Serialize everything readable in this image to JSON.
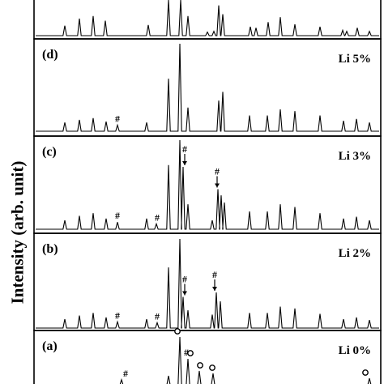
{
  "chart_data": {
    "type": "line",
    "ylabel": "Intensity (arb. unit)",
    "xlabel": "",
    "panels": [
      {
        "panel": "",
        "label": "",
        "peaks": [
          {
            "x": 80,
            "h": 0.28
          },
          {
            "x": 98,
            "h": 0.48
          },
          {
            "x": 115,
            "h": 0.55
          },
          {
            "x": 130,
            "h": 0.42
          },
          {
            "x": 183,
            "h": 0.3
          },
          {
            "x": 208,
            "h": 1.0
          },
          {
            "x": 223,
            "h": 1.0
          },
          {
            "x": 232,
            "h": 0.55
          },
          {
            "x": 256,
            "h": 0.1
          },
          {
            "x": 264,
            "h": 0.12
          },
          {
            "x": 270,
            "h": 0.85
          },
          {
            "x": 275,
            "h": 0.6
          },
          {
            "x": 309,
            "h": 0.25
          },
          {
            "x": 316,
            "h": 0.22
          },
          {
            "x": 331,
            "h": 0.38
          },
          {
            "x": 346,
            "h": 0.52
          },
          {
            "x": 364,
            "h": 0.32
          },
          {
            "x": 395,
            "h": 0.25
          },
          {
            "x": 423,
            "h": 0.15
          },
          {
            "x": 428,
            "h": 0.12
          },
          {
            "x": 441,
            "h": 0.22
          },
          {
            "x": 456,
            "h": 0.12
          }
        ],
        "markers": []
      },
      {
        "panel": "(d)",
        "label": "Li 5%",
        "peaks": [
          {
            "x": 80,
            "h": 0.1
          },
          {
            "x": 98,
            "h": 0.13
          },
          {
            "x": 115,
            "h": 0.15
          },
          {
            "x": 131,
            "h": 0.11
          },
          {
            "x": 145,
            "h": 0.07
          },
          {
            "x": 181,
            "h": 0.1
          },
          {
            "x": 208,
            "h": 0.6
          },
          {
            "x": 222,
            "h": 1.0
          },
          {
            "x": 232,
            "h": 0.27
          },
          {
            "x": 270,
            "h": 0.35
          },
          {
            "x": 275,
            "h": 0.45
          },
          {
            "x": 308,
            "h": 0.18
          },
          {
            "x": 330,
            "h": 0.18
          },
          {
            "x": 346,
            "h": 0.25
          },
          {
            "x": 364,
            "h": 0.23
          },
          {
            "x": 395,
            "h": 0.18
          },
          {
            "x": 424,
            "h": 0.12
          },
          {
            "x": 440,
            "h": 0.14
          },
          {
            "x": 456,
            "h": 0.1
          }
        ],
        "markers": [
          {
            "x": 145,
            "symbol": "#",
            "arrow": false
          }
        ]
      },
      {
        "panel": "(c)",
        "label": "Li 3%",
        "peaks": [
          {
            "x": 80,
            "h": 0.1
          },
          {
            "x": 98,
            "h": 0.15
          },
          {
            "x": 115,
            "h": 0.18
          },
          {
            "x": 131,
            "h": 0.12
          },
          {
            "x": 145,
            "h": 0.08
          },
          {
            "x": 181,
            "h": 0.12
          },
          {
            "x": 193,
            "h": 0.06
          },
          {
            "x": 208,
            "h": 0.72
          },
          {
            "x": 222,
            "h": 1.0
          },
          {
            "x": 226,
            "h": 0.7
          },
          {
            "x": 232,
            "h": 0.28
          },
          {
            "x": 262,
            "h": 0.1
          },
          {
            "x": 269,
            "h": 0.45
          },
          {
            "x": 273,
            "h": 0.38
          },
          {
            "x": 277,
            "h": 0.3
          },
          {
            "x": 308,
            "h": 0.2
          },
          {
            "x": 330,
            "h": 0.2
          },
          {
            "x": 346,
            "h": 0.28
          },
          {
            "x": 364,
            "h": 0.25
          },
          {
            "x": 395,
            "h": 0.18
          },
          {
            "x": 424,
            "h": 0.12
          },
          {
            "x": 440,
            "h": 0.14
          },
          {
            "x": 456,
            "h": 0.1
          }
        ],
        "markers": [
          {
            "x": 145,
            "symbol": "#",
            "arrow": false
          },
          {
            "x": 194,
            "symbol": "#",
            "arrow": false
          },
          {
            "x": 228,
            "symbol": "#",
            "arrow": true
          },
          {
            "x": 268,
            "symbol": "#",
            "arrow": true
          }
        ]
      },
      {
        "panel": "(b)",
        "label": "Li 2%",
        "peaks": [
          {
            "x": 80,
            "h": 0.1
          },
          {
            "x": 98,
            "h": 0.14
          },
          {
            "x": 115,
            "h": 0.17
          },
          {
            "x": 131,
            "h": 0.12
          },
          {
            "x": 145,
            "h": 0.07
          },
          {
            "x": 181,
            "h": 0.1
          },
          {
            "x": 194,
            "h": 0.06
          },
          {
            "x": 208,
            "h": 0.68
          },
          {
            "x": 222,
            "h": 1.0
          },
          {
            "x": 226,
            "h": 0.35
          },
          {
            "x": 232,
            "h": 0.2
          },
          {
            "x": 262,
            "h": 0.15
          },
          {
            "x": 267,
            "h": 0.4
          },
          {
            "x": 272,
            "h": 0.3
          },
          {
            "x": 308,
            "h": 0.17
          },
          {
            "x": 330,
            "h": 0.17
          },
          {
            "x": 346,
            "h": 0.24
          },
          {
            "x": 364,
            "h": 0.22
          },
          {
            "x": 395,
            "h": 0.16
          },
          {
            "x": 424,
            "h": 0.1
          },
          {
            "x": 440,
            "h": 0.12
          },
          {
            "x": 456,
            "h": 0.09
          }
        ],
        "markers": [
          {
            "x": 145,
            "symbol": "#",
            "arrow": false
          },
          {
            "x": 194,
            "symbol": "#",
            "arrow": false
          },
          {
            "x": 228,
            "symbol": "#",
            "arrow": true
          },
          {
            "x": 265,
            "symbol": "#",
            "arrow": true
          }
        ]
      },
      {
        "panel": "(a)",
        "label": "Li 0%",
        "peaks": [
          {
            "x": 150,
            "h": 0.12
          },
          {
            "x": 208,
            "h": 0.2
          },
          {
            "x": 222,
            "h": 1.0
          },
          {
            "x": 232,
            "h": 0.55
          },
          {
            "x": 246,
            "h": 0.3
          },
          {
            "x": 263,
            "h": 0.25
          },
          {
            "x": 456,
            "h": 0.15
          }
        ],
        "markers": [
          {
            "x": 155,
            "symbol": "#",
            "arrow": false
          },
          {
            "x": 230,
            "symbol": "#",
            "arrow": false
          },
          {
            "x": 219,
            "symbol": "o",
            "arrow": false
          },
          {
            "x": 235,
            "symbol": "o",
            "arrow": false
          },
          {
            "x": 247,
            "symbol": "o",
            "arrow": false
          },
          {
            "x": 262,
            "symbol": "o",
            "arrow": false
          },
          {
            "x": 451,
            "symbol": "o",
            "arrow": false
          }
        ]
      }
    ]
  }
}
